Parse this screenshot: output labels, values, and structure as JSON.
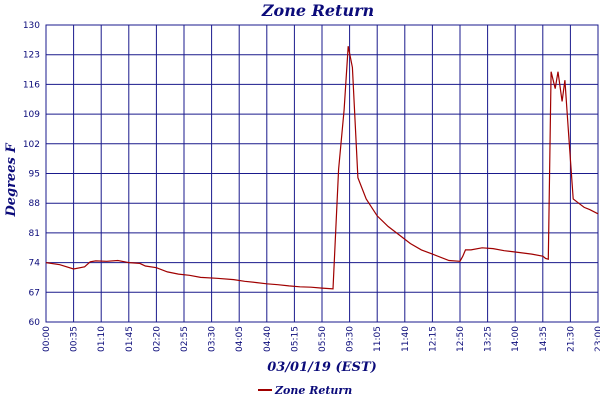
{
  "chart_data": {
    "type": "line",
    "title": "Zone Return",
    "xlabel": "03/01/19 (EST)",
    "ylabel": "Degrees F",
    "ylim": [
      60,
      130
    ],
    "yticks": [
      "60",
      "67",
      "74",
      "81",
      "88",
      "95",
      "102",
      "109",
      "116",
      "123",
      "130"
    ],
    "xticks": [
      "00:00",
      "00:35",
      "01:10",
      "01:45",
      "02:20",
      "02:55",
      "03:30",
      "04:05",
      "04:40",
      "05:15",
      "05:50",
      "09:30",
      "11:05",
      "11:40",
      "12:15",
      "12:50",
      "13:25",
      "14:00",
      "14:35",
      "21:30",
      "23:00"
    ],
    "grid": true,
    "legend_position": "bottom-center",
    "series": [
      {
        "name": "Zone Return",
        "color": "#a00000",
        "x": [
          0,
          0.5,
          1.0,
          1.4,
          1.6,
          1.8,
          2.2,
          2.6,
          3.0,
          3.4,
          3.6,
          4.0,
          4.4,
          4.8,
          5.2,
          5.6,
          6.2,
          6.8,
          7.2,
          7.6,
          8.0,
          8.4,
          8.8,
          9.2,
          9.6,
          10.0,
          10.4,
          10.6,
          10.8,
          10.95,
          11.1,
          11.3,
          11.6,
          12.0,
          12.4,
          12.8,
          13.2,
          13.6,
          14.0,
          14.6,
          15.0,
          15.1,
          15.2,
          15.4,
          15.8,
          16.2,
          16.6,
          17.0,
          17.6,
          18.0,
          18.1,
          18.2,
          18.3,
          18.45,
          18.55,
          18.7,
          18.8,
          18.95,
          19.1,
          19.3,
          19.5,
          19.7,
          20.0
        ],
        "values": [
          74,
          73.5,
          72.5,
          73.0,
          74.2,
          74.4,
          74.3,
          74.5,
          74.0,
          73.8,
          73.2,
          72.8,
          71.8,
          71.3,
          71.0,
          70.5,
          70.3,
          70.0,
          69.6,
          69.3,
          69.0,
          68.8,
          68.5,
          68.3,
          68.2,
          68.0,
          67.8,
          96,
          110,
          125,
          120,
          94,
          89,
          85,
          82.5,
          80.5,
          78.5,
          77,
          76,
          74.5,
          74.3,
          75.5,
          77.0,
          77.0,
          77.5,
          77.3,
          76.8,
          76.5,
          76.0,
          75.5,
          75.0,
          74.8,
          119,
          115,
          119,
          112,
          117,
          103,
          89,
          88,
          87,
          86.5,
          85.5
        ]
      }
    ]
  }
}
